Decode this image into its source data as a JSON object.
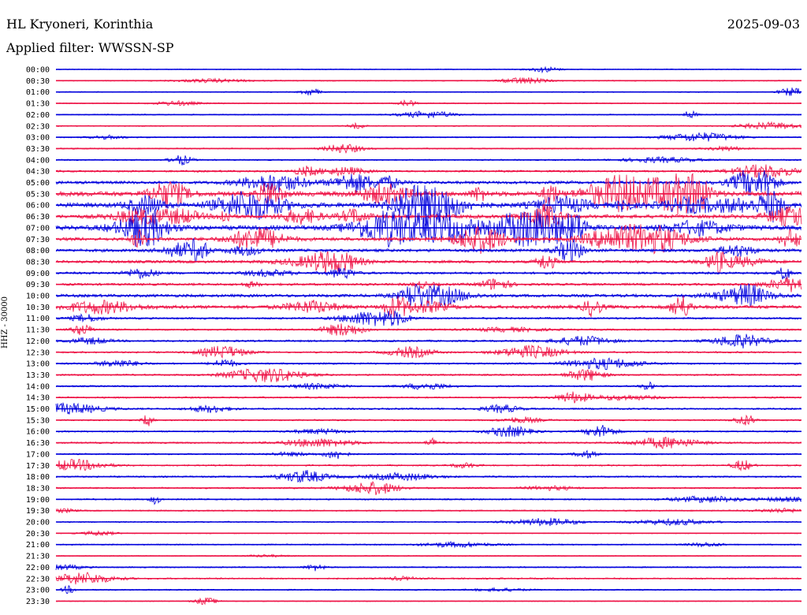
{
  "header": {
    "station": "HL Kryoneri, Korinthia",
    "date": "2025-09-03",
    "filter": "Applied filter: WWSSN-SP"
  },
  "channel_label": "HHZ - 30000",
  "colors": {
    "a": "#0000dd",
    "b": "#ee1144"
  },
  "rows": [
    {
      "time": "00:00",
      "activity": 0.12
    },
    {
      "time": "00:30",
      "activity": 0.15
    },
    {
      "time": "01:00",
      "activity": 0.14
    },
    {
      "time": "01:30",
      "activity": 0.16
    },
    {
      "time": "02:00",
      "activity": 0.16
    },
    {
      "time": "02:30",
      "activity": 0.16
    },
    {
      "time": "03:00",
      "activity": 0.18
    },
    {
      "time": "03:30",
      "activity": 0.2
    },
    {
      "time": "04:00",
      "activity": 0.22
    },
    {
      "time": "04:30",
      "activity": 0.35
    },
    {
      "time": "05:00",
      "activity": 0.6
    },
    {
      "time": "05:30",
      "activity": 1.0
    },
    {
      "time": "06:00",
      "activity": 1.0
    },
    {
      "time": "06:30",
      "activity": 0.75
    },
    {
      "time": "07:00",
      "activity": 0.95
    },
    {
      "time": "07:30",
      "activity": 0.7
    },
    {
      "time": "08:00",
      "activity": 0.6
    },
    {
      "time": "08:30",
      "activity": 0.55
    },
    {
      "time": "09:00",
      "activity": 0.45
    },
    {
      "time": "09:30",
      "activity": 0.45
    },
    {
      "time": "10:00",
      "activity": 0.6
    },
    {
      "time": "10:30",
      "activity": 0.7
    },
    {
      "time": "11:00",
      "activity": 0.35
    },
    {
      "time": "11:30",
      "activity": 0.3
    },
    {
      "time": "12:00",
      "activity": 0.35
    },
    {
      "time": "12:30",
      "activity": 0.3
    },
    {
      "time": "13:00",
      "activity": 0.3
    },
    {
      "time": "13:30",
      "activity": 0.3
    },
    {
      "time": "14:00",
      "activity": 0.28
    },
    {
      "time": "14:30",
      "activity": 0.28
    },
    {
      "time": "15:00",
      "activity": 0.3
    },
    {
      "time": "15:30",
      "activity": 0.25
    },
    {
      "time": "16:00",
      "activity": 0.28
    },
    {
      "time": "16:30",
      "activity": 0.28
    },
    {
      "time": "17:00",
      "activity": 0.25
    },
    {
      "time": "17:30",
      "activity": 0.25
    },
    {
      "time": "18:00",
      "activity": 0.28
    },
    {
      "time": "18:30",
      "activity": 0.28
    },
    {
      "time": "19:00",
      "activity": 0.25
    },
    {
      "time": "19:30",
      "activity": 0.22
    },
    {
      "time": "20:00",
      "activity": 0.2
    },
    {
      "time": "20:30",
      "activity": 0.12
    },
    {
      "time": "21:00",
      "activity": 0.2
    },
    {
      "time": "21:30",
      "activity": 0.12
    },
    {
      "time": "22:00",
      "activity": 0.22
    },
    {
      "time": "22:30",
      "activity": 0.25
    },
    {
      "time": "23:00",
      "activity": 0.2
    },
    {
      "time": "23:30",
      "activity": 0.12
    }
  ]
}
